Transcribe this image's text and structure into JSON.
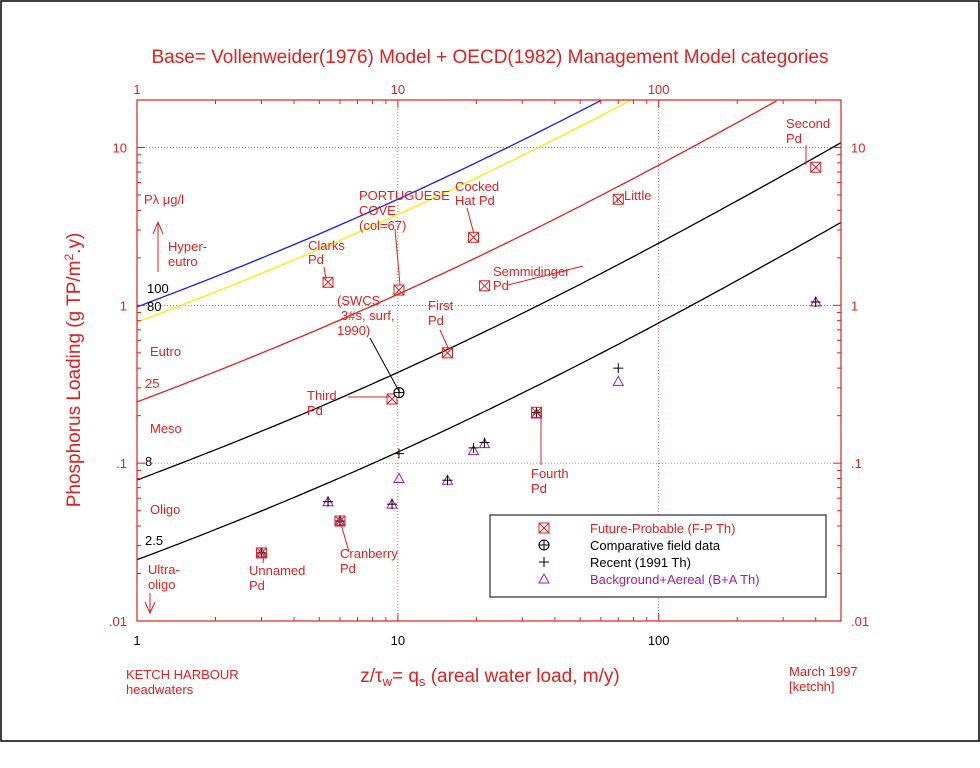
{
  "chart_data": {
    "type": "scatter",
    "title": "Base= Vollenweider(1976) Model + OECD(1982) Management Model categories",
    "xlabel": "z/τw= qs (areal water load, m/y)",
    "xlabel_parts": {
      "z": "z/",
      "tau": "τ",
      "w": "w",
      "eq": "= q",
      "s": "s",
      "rest": " (areal water load, m/y)"
    },
    "ylabel": "Phosphorus Loading (g TP/m2.y)",
    "ylabel_parts": {
      "main": "Phosphorus Loading (g TP/m",
      "sup": "2",
      "end": ".y)"
    },
    "x_scale": "log",
    "y_scale": "log",
    "xlim": [
      1,
      500
    ],
    "ylim": [
      0.01,
      20
    ],
    "x_ticks": [
      {
        "value": 1,
        "label": "1"
      },
      {
        "value": 10,
        "label": "10"
      },
      {
        "value": 100,
        "label": "100"
      }
    ],
    "y_ticks": [
      {
        "value": 0.01,
        "label": ".01"
      },
      {
        "value": 0.1,
        "label": ".1"
      },
      {
        "value": 1,
        "label": "1"
      },
      {
        "value": 10,
        "label": "10"
      }
    ],
    "grid": true,
    "reference_curves": [
      {
        "name": "100",
        "P": 100,
        "color": "#1a1aee"
      },
      {
        "name": "80",
        "P": 80,
        "color": "#f5f000"
      },
      {
        "name": "25",
        "P": 25,
        "color": "#e02020"
      },
      {
        "name": "8",
        "P": 8,
        "color": "#000000"
      },
      {
        "name": "2.5",
        "P": 2.5,
        "color": "#000000"
      }
    ],
    "category_labels": [
      "Hyper-",
      "eutro",
      "Eutro",
      "Meso",
      "Oligo",
      "Ultra-",
      "oligo"
    ],
    "axis_note": "Pλ μg/l",
    "series": [
      {
        "name": "Future-Probable (F-P Th)",
        "marker": "boxed-x",
        "color": "#e02020",
        "points": [
          {
            "x": 3.0,
            "y": 0.027,
            "label": "Unnamed Pd"
          },
          {
            "x": 5.4,
            "y": 1.4,
            "label": "Clarks Pd"
          },
          {
            "x": 6.0,
            "y": 0.043,
            "label": "Cranberry Pd"
          },
          {
            "x": 9.5,
            "y": 0.255,
            "label": "Third Pd"
          },
          {
            "x": 10.1,
            "y": 1.25,
            "label": "PORTUGUESE COVE (col=67)"
          },
          {
            "x": 15.5,
            "y": 0.5,
            "label": "First Pd"
          },
          {
            "x": 19.5,
            "y": 2.7,
            "label": "Cocked Hat Pd"
          },
          {
            "x": 21.5,
            "y": 1.33,
            "label": "Semmidinger Pd"
          },
          {
            "x": 34.0,
            "y": 0.21,
            "label": "Fourth Pd"
          },
          {
            "x": 70.0,
            "y": 4.7,
            "label": "Little"
          },
          {
            "x": 400.0,
            "y": 7.5,
            "label": "Second Pd"
          }
        ]
      },
      {
        "name": "Comparative field data",
        "marker": "circle-plus",
        "color": "#000000",
        "points": [
          {
            "x": 10.1,
            "y": 0.28,
            "label": "(SWCS 3#s, surf, 1990)"
          }
        ]
      },
      {
        "name": "Recent (1991 Th)",
        "marker": "plus",
        "color": "#000000",
        "points": [
          {
            "x": 3.0,
            "y": 0.027
          },
          {
            "x": 5.4,
            "y": 0.057
          },
          {
            "x": 6.0,
            "y": 0.043
          },
          {
            "x": 9.5,
            "y": 0.055
          },
          {
            "x": 10.1,
            "y": 0.115
          },
          {
            "x": 15.5,
            "y": 0.078
          },
          {
            "x": 19.5,
            "y": 0.125
          },
          {
            "x": 21.5,
            "y": 0.135
          },
          {
            "x": 34.0,
            "y": 0.21
          },
          {
            "x": 70.0,
            "y": 0.4
          },
          {
            "x": 400.0,
            "y": 1.05
          }
        ]
      },
      {
        "name": "Background+Aereal (B+A Th)",
        "marker": "triangle",
        "color": "#a020a0",
        "points": [
          {
            "x": 3.0,
            "y": 0.027
          },
          {
            "x": 5.4,
            "y": 0.057
          },
          {
            "x": 6.0,
            "y": 0.043
          },
          {
            "x": 9.5,
            "y": 0.055
          },
          {
            "x": 10.1,
            "y": 0.08
          },
          {
            "x": 15.5,
            "y": 0.078
          },
          {
            "x": 19.5,
            "y": 0.12
          },
          {
            "x": 21.5,
            "y": 0.133
          },
          {
            "x": 34.0,
            "y": 0.205
          },
          {
            "x": 70.0,
            "y": 0.33
          },
          {
            "x": 400.0,
            "y": 1.05
          }
        ]
      }
    ],
    "legend": {
      "placement": "bottom-right",
      "entries": [
        {
          "label": "Future-Probable (F-P Th)",
          "color": "#e02020",
          "marker": "boxed-x"
        },
        {
          "label": "Comparative field data",
          "color": "#000000",
          "marker": "circle-plus"
        },
        {
          "label": "Recent (1991 Th)",
          "color": "#000000",
          "marker": "plus"
        },
        {
          "label": "Background+Aereal (B+A Th)",
          "color": "#a020a0",
          "marker": "triangle"
        }
      ]
    },
    "footer_left": [
      "KETCH HARBOUR",
      "headwaters"
    ],
    "footer_right": [
      "March 1997",
      "[ketchh]"
    ]
  },
  "colors": {
    "axis": "#e02020",
    "text": "#e02020",
    "grid": "#e03030"
  }
}
